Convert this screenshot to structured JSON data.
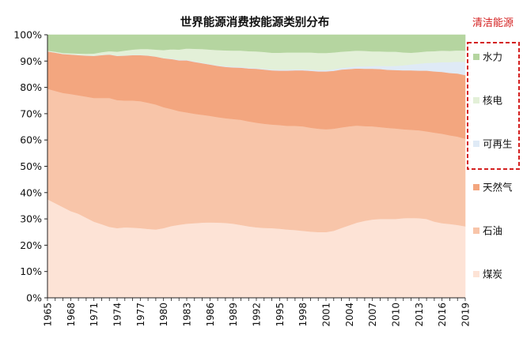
{
  "chart_data": {
    "type": "area",
    "stacked": true,
    "title": "世界能源消费按能源类别分布",
    "xlabel": "",
    "ylabel": "",
    "ylim": [
      0,
      100
    ],
    "y_unit": "%",
    "y_ticks": [
      0,
      10,
      20,
      30,
      40,
      50,
      60,
      70,
      80,
      90,
      100
    ],
    "x_ticks": [
      1965,
      1968,
      1971,
      1974,
      1977,
      1980,
      1983,
      1986,
      1989,
      1992,
      1995,
      1998,
      2001,
      2004,
      2007,
      2010,
      2013,
      2016,
      2019
    ],
    "legend_position": "right",
    "clean_energy_label": "清洁能源",
    "x": [
      1965,
      1966,
      1967,
      1968,
      1969,
      1970,
      1971,
      1972,
      1973,
      1974,
      1975,
      1976,
      1977,
      1978,
      1979,
      1980,
      1981,
      1982,
      1983,
      1984,
      1985,
      1986,
      1987,
      1988,
      1989,
      1990,
      1991,
      1992,
      1993,
      1994,
      1995,
      1996,
      1997,
      1998,
      1999,
      2000,
      2001,
      2002,
      2003,
      2004,
      2005,
      2006,
      2007,
      2008,
      2009,
      2010,
      2011,
      2012,
      2013,
      2014,
      2015,
      2016,
      2017,
      2018,
      2019
    ],
    "series": [
      {
        "name": "煤炭",
        "color": "#fde3d6",
        "values": [
          37.5,
          36.0,
          34.5,
          33.0,
          32.0,
          30.5,
          29.0,
          28.0,
          27.0,
          26.5,
          26.8,
          26.7,
          26.5,
          26.2,
          26.0,
          26.5,
          27.3,
          27.8,
          28.2,
          28.4,
          28.6,
          28.7,
          28.6,
          28.5,
          28.2,
          27.7,
          27.2,
          26.8,
          26.6,
          26.5,
          26.3,
          26.0,
          25.8,
          25.5,
          25.2,
          25.0,
          25.0,
          25.5,
          26.6,
          27.6,
          28.6,
          29.3,
          29.8,
          30.0,
          30.0,
          30.0,
          30.3,
          30.4,
          30.3,
          30.0,
          29.0,
          28.4,
          28.1,
          27.7,
          27.2
        ]
      },
      {
        "name": "石油",
        "color": "#f8c5a9",
        "values": [
          42.0,
          42.7,
          43.4,
          44.5,
          45.0,
          46.0,
          47.0,
          48.0,
          49.0,
          48.7,
          48.2,
          48.3,
          48.3,
          48.0,
          47.5,
          46.0,
          44.5,
          43.2,
          42.3,
          41.6,
          41.0,
          40.5,
          40.1,
          39.8,
          39.8,
          40.0,
          39.9,
          39.8,
          39.6,
          39.4,
          39.4,
          39.4,
          39.6,
          39.7,
          39.5,
          39.3,
          39.1,
          38.8,
          38.2,
          37.6,
          36.9,
          36.0,
          35.4,
          34.9,
          34.6,
          34.4,
          33.8,
          33.5,
          33.4,
          33.3,
          33.8,
          34.0,
          33.7,
          33.6,
          33.3
        ]
      },
      {
        "name": "天然气",
        "color": "#f3a67f",
        "values": [
          14.2,
          14.5,
          14.8,
          15.0,
          15.3,
          15.6,
          16.0,
          16.3,
          16.5,
          16.8,
          17.1,
          17.3,
          17.5,
          17.9,
          18.2,
          18.6,
          19.0,
          19.3,
          19.8,
          19.7,
          19.6,
          19.5,
          19.5,
          19.5,
          19.6,
          19.8,
          20.1,
          20.5,
          20.6,
          20.6,
          20.7,
          21.0,
          21.1,
          21.3,
          21.6,
          21.8,
          22.0,
          22.0,
          22.0,
          21.8,
          21.7,
          21.8,
          21.9,
          22.1,
          22.1,
          22.2,
          22.4,
          22.6,
          22.7,
          23.1,
          23.3,
          23.5,
          23.7,
          24.0,
          24.2
        ]
      },
      {
        "name": "可再生",
        "color": "#dfeaf6",
        "values": [
          0.1,
          0.1,
          0.1,
          0.1,
          0.1,
          0.1,
          0.1,
          0.1,
          0.1,
          0.1,
          0.1,
          0.1,
          0.1,
          0.1,
          0.1,
          0.1,
          0.2,
          0.2,
          0.2,
          0.2,
          0.2,
          0.2,
          0.2,
          0.3,
          0.3,
          0.3,
          0.3,
          0.3,
          0.3,
          0.3,
          0.4,
          0.4,
          0.4,
          0.4,
          0.5,
          0.5,
          0.5,
          0.6,
          0.6,
          0.7,
          0.8,
          0.9,
          1.0,
          1.2,
          1.4,
          1.6,
          1.9,
          2.2,
          2.6,
          2.9,
          3.3,
          3.7,
          4.1,
          4.5,
          5.0
        ]
      },
      {
        "name": "核电",
        "color": "#e3f0d8",
        "values": [
          0.2,
          0.3,
          0.3,
          0.4,
          0.5,
          0.6,
          0.8,
          1.0,
          1.2,
          1.5,
          1.8,
          2.0,
          2.2,
          2.4,
          2.6,
          3.0,
          3.5,
          3.9,
          4.3,
          4.8,
          5.2,
          5.5,
          5.8,
          6.0,
          6.1,
          6.2,
          6.3,
          6.3,
          6.4,
          6.4,
          6.4,
          6.5,
          6.4,
          6.4,
          6.5,
          6.5,
          6.5,
          6.4,
          6.2,
          6.1,
          6.0,
          5.9,
          5.6,
          5.5,
          5.5,
          5.4,
          4.9,
          4.5,
          4.4,
          4.4,
          4.4,
          4.4,
          4.3,
          4.3,
          4.3
        ]
      },
      {
        "name": "水力",
        "color": "#b5d5a0",
        "values": [
          6.0,
          6.4,
          6.9,
          7.0,
          7.1,
          7.2,
          7.1,
          6.6,
          6.2,
          6.4,
          6.0,
          5.6,
          5.4,
          5.4,
          5.6,
          5.8,
          5.5,
          5.6,
          5.2,
          5.3,
          5.4,
          5.6,
          5.8,
          5.9,
          6.0,
          6.0,
          6.2,
          6.3,
          6.5,
          6.8,
          6.8,
          6.7,
          6.7,
          6.7,
          6.7,
          6.9,
          6.9,
          6.7,
          6.4,
          6.2,
          6.0,
          6.1,
          6.3,
          6.3,
          6.4,
          6.4,
          6.7,
          6.8,
          6.6,
          6.3,
          6.2,
          6.0,
          6.1,
          5.9,
          6.0
        ]
      }
    ]
  }
}
